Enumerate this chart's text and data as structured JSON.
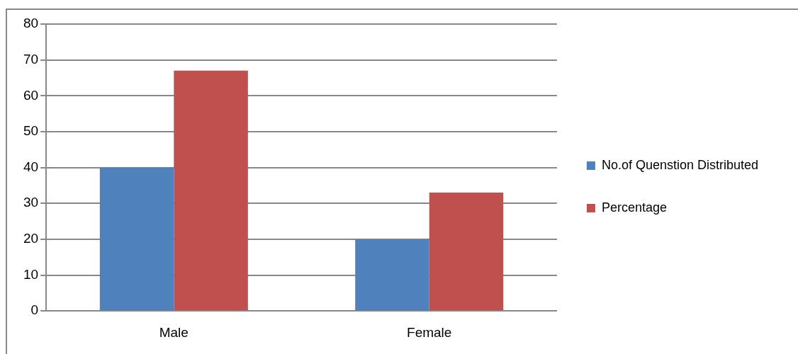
{
  "chart_data": {
    "type": "bar",
    "categories": [
      "Male",
      "Female"
    ],
    "series": [
      {
        "name": "No.of Quenstion Distributed",
        "color": "#4f81bd",
        "values": [
          40,
          20
        ]
      },
      {
        "name": "Percentage",
        "color": "#c0504d",
        "values": [
          67,
          33
        ]
      }
    ],
    "ylim": [
      0,
      80
    ],
    "yticks": [
      0,
      10,
      20,
      30,
      40,
      50,
      60,
      70,
      80
    ],
    "grid": "y",
    "legend": "right"
  }
}
